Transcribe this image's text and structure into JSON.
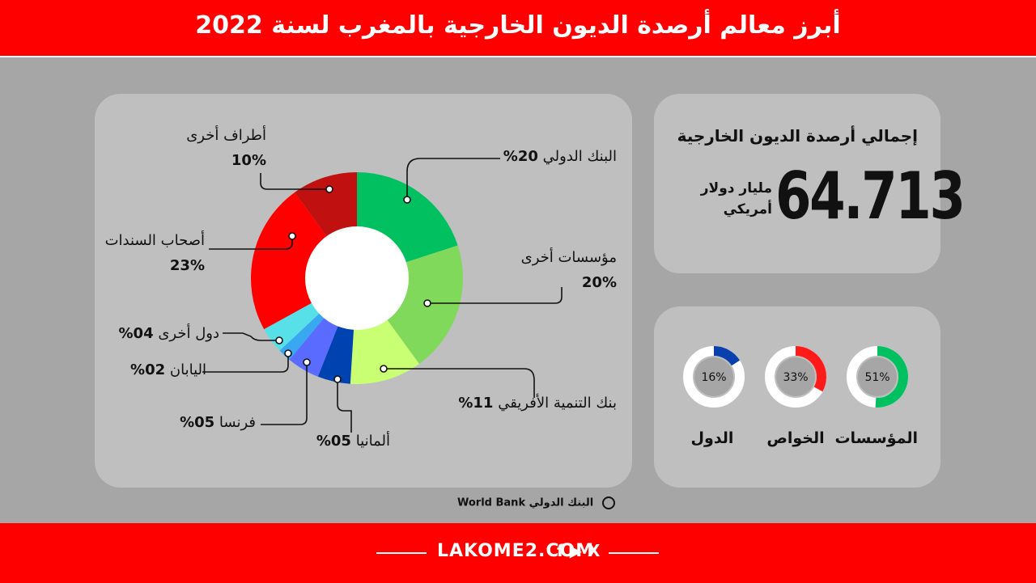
{
  "header": {
    "title": "أبرز معالم أرصدة الديون الخارجية بالمغرب لسنة 2022"
  },
  "total": {
    "title": "إجمالي أرصدة الديون الخارجية",
    "value": "64.713",
    "unit_line1": "مليار دولار",
    "unit_line2": "أمريكي"
  },
  "labels": {
    "world_bank": {
      "name": "البنك الدولي",
      "pct": "20%"
    },
    "other_institutions": {
      "name": "مؤسسات أخرى",
      "pct": "20%"
    },
    "afdb": {
      "name": "بنك التنمية الأفريقي",
      "pct": "11%"
    },
    "germany": {
      "name": "ألمانيا",
      "pct": "05%"
    },
    "france": {
      "name": "فرنسا",
      "pct": "05%"
    },
    "japan": {
      "name": "اليابان",
      "pct": "02%"
    },
    "other_countries": {
      "name": "دول أخرى",
      "pct": "04%"
    },
    "bondholders": {
      "name": "أصحاب السندات",
      "pct": "23%"
    },
    "other_parties": {
      "name": "أطراف أخرى",
      "pct": "10%"
    }
  },
  "source": {
    "text": "البنك الدولي World Bank"
  },
  "footer": {
    "brand": "LAKOME2.COM",
    "social": "f ▶ X"
  },
  "colors": {
    "red": "#ff0000",
    "panel": "#bfbfbf",
    "background": "#a6a6a6"
  },
  "chart_data": [
    {
      "type": "pie",
      "categories": [
        "البنك الدولي",
        "مؤسسات أخرى",
        "بنك التنمية الأفريقي",
        "ألمانيا",
        "فرنسا",
        "اليابان",
        "دول أخرى",
        "أصحاب السندات",
        "أطراف أخرى"
      ],
      "values": [
        20,
        20,
        11,
        5,
        5,
        2,
        4,
        23,
        10
      ],
      "colors": [
        "#00c060",
        "#80d95a",
        "#c8ff73",
        "#0042b0",
        "#5a6bff",
        "#3aa8f0",
        "#58e0e8",
        "#ff0000",
        "#c01010"
      ]
    },
    {
      "type": "pie",
      "categories": [
        "المؤسسات",
        "الخواص",
        "الدول"
      ],
      "values": [
        51,
        33,
        16
      ],
      "labels": [
        "51%",
        "33%",
        "16%"
      ],
      "colors": [
        "#00c060",
        "#ff1a1a",
        "#0a3fae"
      ]
    }
  ]
}
